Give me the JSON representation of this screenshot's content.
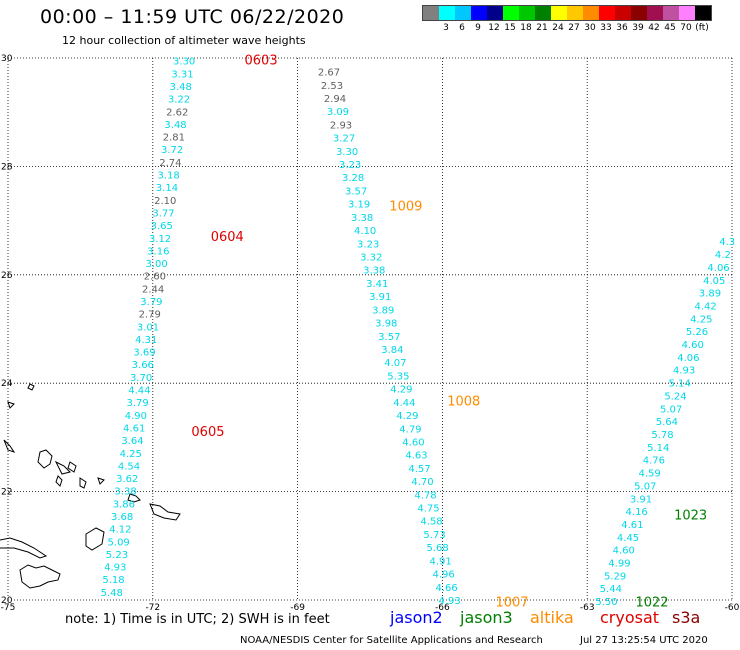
{
  "header": {
    "title": "00:00 – 11:59 UTC 06/22/2020",
    "subtitle": "12 hour collection of altimeter wave heights"
  },
  "color_scale": {
    "colors": [
      "#808080",
      "#00ffff",
      "#00c8ff",
      "#0000ff",
      "#00008b",
      "#00ff00",
      "#00c800",
      "#008000",
      "#ffff00",
      "#ffc800",
      "#ff8c00",
      "#ff0000",
      "#c80000",
      "#8b0000",
      "#a01050",
      "#c050a0",
      "#ff80ff",
      "#000000"
    ],
    "labels": [
      "3",
      "6",
      "9",
      "12",
      "15",
      "18",
      "21",
      "24",
      "27",
      "30",
      "33",
      "36",
      "39",
      "42",
      "45",
      "70",
      "(ft)"
    ]
  },
  "axes": {
    "x_ticks": [
      "-75",
      "-72",
      "-69",
      "-66",
      "-63",
      "-60"
    ],
    "y_ticks": [
      "30",
      "28",
      "26",
      "24",
      "22",
      "20"
    ]
  },
  "tracks": [
    {
      "id": "track-0603-0605",
      "values": [
        "3.30",
        "3.31",
        "3.48",
        "3.22",
        "2.62",
        "3.48",
        "2.81",
        "3.72",
        "2.74",
        "3.18",
        "3.14",
        "2.10",
        "3.77",
        "3.65",
        "3.12",
        "3.16",
        "3.00",
        "2.60",
        "2.44",
        "3.79",
        "2.79",
        "3.01",
        "4.31",
        "3.69",
        "3.66",
        "3.70",
        "4.44",
        "3.79",
        "4.90",
        "4.61",
        "3.64",
        "4.25",
        "4.54",
        "3.62",
        "3.38",
        "3.86",
        "3.68",
        "4.12",
        "5.09",
        "5.23",
        "4.93",
        "5.18",
        "5.48"
      ]
    },
    {
      "id": "track-1009-1007",
      "values": [
        "2.67",
        "2.53",
        "2.94",
        "3.09",
        "2.93",
        "3.27",
        "3.30",
        "3.23",
        "3.28",
        "3.57",
        "3.19",
        "3.38",
        "4.10",
        "3.23",
        "3.32",
        "3.38",
        "3.41",
        "3.91",
        "3.89",
        "3.98",
        "3.57",
        "3.84",
        "4.07",
        "5.35",
        "4.29",
        "4.44",
        "4.29",
        "4.79",
        "4.60",
        "4.63",
        "4.57",
        "4.70",
        "4.78",
        "4.75",
        "4.58",
        "5.73",
        "5.68",
        "4.91",
        "4.96",
        "4.66",
        "4.93"
      ]
    },
    {
      "id": "track-1023-1022",
      "values": [
        "4.3",
        "4.2",
        "4.06",
        "4.05",
        "3.89",
        "4.42",
        "4.25",
        "5.26",
        "4.60",
        "4.06",
        "4.93",
        "5.14",
        "5.24",
        "5.07",
        "5.64",
        "5.78",
        "5.14",
        "4.76",
        "4.59",
        "5.07",
        "3.91",
        "4.16",
        "4.61",
        "4.45",
        "4.60",
        "4.99",
        "5.29",
        "5.44",
        "5.50"
      ]
    }
  ],
  "time_labels": [
    {
      "text": "0603",
      "color": "#e00000",
      "lon": -70.1,
      "lat": 29.97
    },
    {
      "text": "0604",
      "color": "#e00000",
      "lon": -70.8,
      "lat": 26.72
    },
    {
      "text": "0605",
      "color": "#e00000",
      "lon": -71.2,
      "lat": 23.12
    },
    {
      "text": "1009",
      "color": "#ff8c00",
      "lon": -67.1,
      "lat": 27.28
    },
    {
      "text": "1008",
      "color": "#ff8c00",
      "lon": -65.9,
      "lat": 23.68
    },
    {
      "text": "1007",
      "color": "#ff8c00",
      "lon": -64.9,
      "lat": 19.97
    },
    {
      "text": "1023",
      "color": "#008000",
      "lon": -61.2,
      "lat": 21.58
    },
    {
      "text": "1022",
      "color": "#008000",
      "lon": -62.0,
      "lat": 19.97
    }
  ],
  "note": "note: 1) Time is in UTC; 2) SWH is in feet",
  "satellites": [
    {
      "name": "jason2",
      "color": "#0000ff"
    },
    {
      "name": "jason3",
      "color": "#008000"
    },
    {
      "name": "altika",
      "color": "#ff8c00"
    },
    {
      "name": "cryosat",
      "color": "#e00000"
    },
    {
      "name": "s3a",
      "color": "#8b0000"
    }
  ],
  "footer": {
    "source": "NOAA/NESDIS Center for Satellite Applications and Research",
    "timestamp": "Jul 27 13:25:54 UTC 2020"
  }
}
